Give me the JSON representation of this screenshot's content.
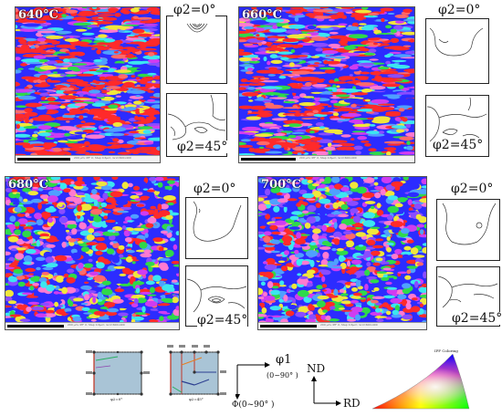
{
  "panels": [
    {
      "temperature": "640°C",
      "phi0_label": "φ2=0°",
      "phi45_label": "φ2=45°",
      "scale_caption": "200 µm; IPF X; Step 0.6µm; Grid 600x400",
      "band_mix": 0.85
    },
    {
      "temperature": "660°C",
      "phi0_label": "φ2=0°",
      "phi45_label": "φ2=45°",
      "scale_caption": "200 µm; IPF X; Step 0.6µm; Grid 600x400",
      "band_mix": 0.65
    },
    {
      "temperature": "680°C",
      "phi0_label": "φ2=0°",
      "phi45_label": "φ2=45°",
      "scale_caption": "200 µm; IPF X; Step 0.6µm; Grid 600x400",
      "band_mix": 0.3
    },
    {
      "temperature": "700°C",
      "phi0_label": "φ2=0°",
      "phi45_label": "φ2=45°",
      "scale_caption": "200 µm; IPF X; Step 0.6µm; Grid 600x400",
      "band_mix": 0.15
    }
  ],
  "legend": {
    "phi1_axis": "φ1",
    "phi1_range": "(0~90° )",
    "Phi_axis": "Φ(0~90° )",
    "nd_label": "ND",
    "rd_label": "RD",
    "key_left_caption": "φ2=0°",
    "key_right_caption": "φ2=45°",
    "ipf_caption": "IPF Coloring"
  },
  "colors": {
    "ipf_red": "#ff2a2a",
    "ipf_blue": "#2c2cff",
    "ipf_magenta": "#d03cf0",
    "ipf_green": "#2fd94a",
    "ipf_cyan": "#3ce6f0",
    "ipf_yellow": "#f0e63c",
    "key_fill": "#a9c4d6"
  }
}
